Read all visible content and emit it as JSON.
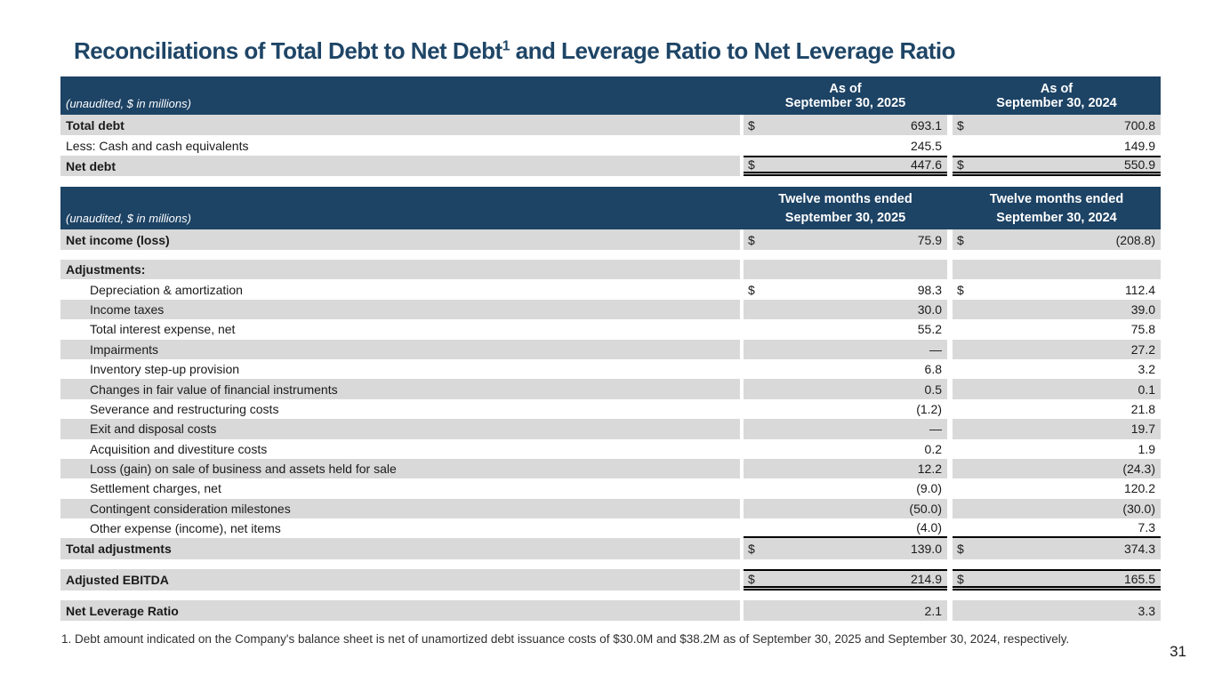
{
  "slide": {
    "title": {
      "pre": "Reconciliations of Total Debt to Net Debt",
      "superscript": "1",
      "post": " and Leverage Ratio to Net Leverage Ratio"
    },
    "footnote": "1. Debt amount indicated on the Company's balance sheet is net of unamortized debt issuance costs of $30.0M and $38.2M as of September 30, 2025 and September 30, 2024, respectively.",
    "page_number": "31"
  },
  "colors": {
    "header_bg": "#1d4365",
    "title_text": "#1e4566",
    "row_shade": "#d9d9d9"
  },
  "debt_table": {
    "unaudited_label": "(unaudited, $ in millions)",
    "columns": [
      {
        "line1": "As of",
        "line2": "September 30, 2025"
      },
      {
        "line1": "As of",
        "line2": "September 30, 2024"
      }
    ],
    "rows": [
      {
        "label": "Total debt",
        "d1": "$",
        "v1": "693.1",
        "d2": "$",
        "v2": "700.8"
      },
      {
        "label": "Less: Cash and cash equivalents",
        "d1": "",
        "v1": "245.5",
        "d2": "",
        "v2": "149.9"
      },
      {
        "label": "Net debt",
        "d1": "$",
        "v1": "447.6",
        "d2": "$",
        "v2": "550.9"
      }
    ]
  },
  "ebitda_table": {
    "unaudited_label": "(unaudited, $ in millions)",
    "columns": [
      {
        "line1": "Twelve months ended",
        "line2": "September 30, 2025"
      },
      {
        "line1": "Twelve months ended",
        "line2": "September 30, 2024"
      }
    ],
    "rows": [
      {
        "label": "Net income (loss)",
        "d1": "$",
        "v1": "75.9",
        "d2": "$",
        "v2": "(208.8)"
      },
      {
        "label": "Adjustments:",
        "d1": "",
        "v1": "",
        "d2": "",
        "v2": ""
      },
      {
        "label": "Depreciation & amortization",
        "d1": "$",
        "v1": "98.3",
        "d2": "$",
        "v2": "112.4"
      },
      {
        "label": "Income taxes",
        "d1": "",
        "v1": "30.0",
        "d2": "",
        "v2": "39.0"
      },
      {
        "label": "Total interest expense, net",
        "d1": "",
        "v1": "55.2",
        "d2": "",
        "v2": "75.8"
      },
      {
        "label": "Impairments",
        "d1": "",
        "v1": "—",
        "d2": "",
        "v2": "27.2"
      },
      {
        "label": "Inventory step-up provision",
        "d1": "",
        "v1": "6.8",
        "d2": "",
        "v2": "3.2"
      },
      {
        "label": "Changes in fair value of financial instruments",
        "d1": "",
        "v1": "0.5",
        "d2": "",
        "v2": "0.1"
      },
      {
        "label": "Severance and restructuring costs",
        "d1": "",
        "v1": "(1.2)",
        "d2": "",
        "v2": "21.8"
      },
      {
        "label": "Exit and disposal costs",
        "d1": "",
        "v1": "—",
        "d2": "",
        "v2": "19.7"
      },
      {
        "label": "Acquisition and divestiture costs",
        "d1": "",
        "v1": "0.2",
        "d2": "",
        "v2": "1.9"
      },
      {
        "label": "Loss (gain) on sale of business and assets held for sale",
        "d1": "",
        "v1": "12.2",
        "d2": "",
        "v2": "(24.3)"
      },
      {
        "label": "Settlement charges, net",
        "d1": "",
        "v1": "(9.0)",
        "d2": "",
        "v2": "120.2"
      },
      {
        "label": "Contingent consideration milestones",
        "d1": "",
        "v1": "(50.0)",
        "d2": "",
        "v2": "(30.0)"
      },
      {
        "label": "Other expense (income), net items",
        "d1": "",
        "v1": "(4.0)",
        "d2": "",
        "v2": "7.3"
      },
      {
        "label": "Total adjustments",
        "d1": "$",
        "v1": "139.0",
        "d2": "$",
        "v2": "374.3"
      },
      {
        "label": "Adjusted EBITDA",
        "d1": "$",
        "v1": "214.9",
        "d2": "$",
        "v2": "165.5"
      },
      {
        "label": "Net Leverage Ratio",
        "d1": "",
        "v1": "2.1",
        "d2": "",
        "v2": "3.3"
      }
    ]
  }
}
